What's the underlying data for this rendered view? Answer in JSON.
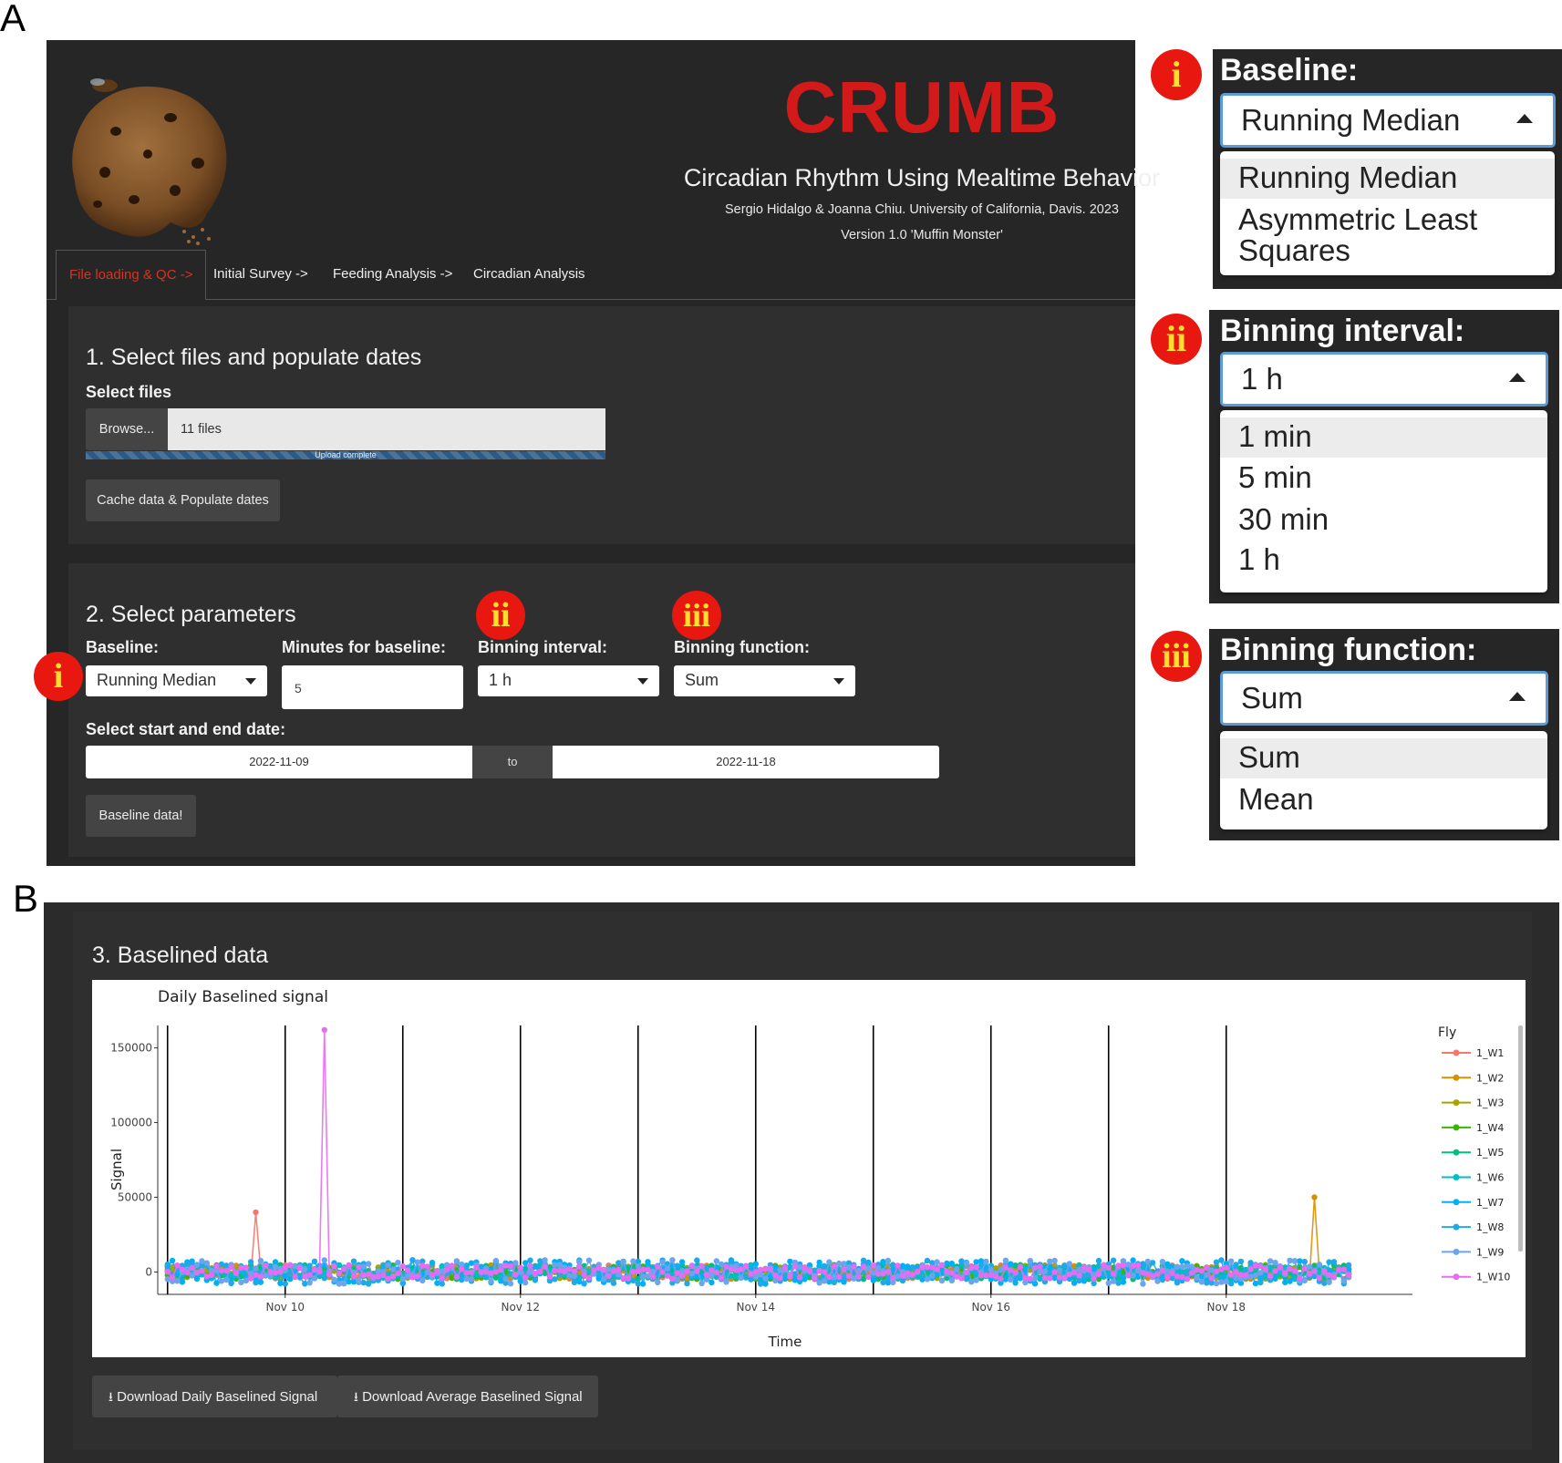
{
  "panel_labels": {
    "a": "A",
    "b": "B"
  },
  "app": {
    "title": "CRUMB",
    "subtitle": "Circadian Rhythm Using Mealtime Behavior",
    "credit": "Sergio Hidalgo & Joanna Chiu. University of California, Davis. 2023",
    "version": "Version 1.0 'Muffin Monster'"
  },
  "tabs": [
    {
      "label": "File loading & QC ->",
      "active": true
    },
    {
      "label": "Initial Survey ->",
      "active": false
    },
    {
      "label": "Feeding Analysis ->",
      "active": false
    },
    {
      "label": "Circadian Analysis",
      "active": false
    }
  ],
  "section1": {
    "heading": "1. Select files and populate dates",
    "select_files_label": "Select files",
    "browse_label": "Browse...",
    "files_value": "11 files",
    "upload_status": "Upload complete",
    "upload_progress": 1.0,
    "cache_button": "Cache data & Populate dates"
  },
  "section2": {
    "heading": "2. Select parameters",
    "baseline_label": "Baseline:",
    "baseline_value": "Running Median",
    "minutes_label": "Minutes for baseline:",
    "minutes_value": "5",
    "binning_interval_label": "Binning interval:",
    "binning_interval_value": "1 h",
    "binning_function_label": "Binning function:",
    "binning_function_value": "Sum",
    "date_label": "Select start and end date:",
    "start_date": "2022-11-09",
    "to_label": "to",
    "end_date": "2022-11-18",
    "baseline_button": "Baseline data!"
  },
  "badges": {
    "i": "i",
    "ii": "ii",
    "iii": "iii"
  },
  "callouts": {
    "baseline": {
      "label": "Baseline:",
      "value": "Running Median",
      "options": [
        "Running Median",
        "Asymmetric Least",
        "Squares"
      ]
    },
    "binning_interval": {
      "label": "Binning interval:",
      "value": "1 h",
      "options": [
        "1 min",
        "5 min",
        "30 min",
        "1 h"
      ]
    },
    "binning_function": {
      "label": "Binning function:",
      "value": "Sum",
      "options": [
        "Sum",
        "Mean"
      ]
    }
  },
  "section3": {
    "heading": "3. Baselined data",
    "download_daily": "Download Daily Baselined Signal",
    "download_average": "Download Average Baselined Signal"
  },
  "chart_data": {
    "type": "line",
    "title": "Daily Baselined signal",
    "xlabel": "Time",
    "ylabel": "Signal",
    "x_range": [
      "2022-11-08T22:00",
      "2022-11-19T14:00"
    ],
    "ylim": [
      -15000,
      165000
    ],
    "yticks": [
      0,
      50000,
      100000,
      150000
    ],
    "ytick_labels": [
      "0",
      "50000",
      "100000",
      "150000"
    ],
    "xticks": [
      "2022-11-10",
      "2022-11-12",
      "2022-11-14",
      "2022-11-16",
      "2022-11-18"
    ],
    "xtick_labels": [
      "Nov 10",
      "Nov 12",
      "Nov 14",
      "Nov 16",
      "Nov 18"
    ],
    "day_boundaries": [
      "2022-11-09",
      "2022-11-10",
      "2022-11-11",
      "2022-11-12",
      "2022-11-13",
      "2022-11-14",
      "2022-11-15",
      "2022-11-16",
      "2022-11-17",
      "2022-11-18"
    ],
    "legend_title": "Fly",
    "legend_position": "right",
    "grid": false,
    "series": [
      {
        "name": "1_W1",
        "color": "#f8766d",
        "spikes": [
          {
            "t": "2022-11-09T18:00",
            "value": 40000
          }
        ]
      },
      {
        "name": "1_W2",
        "color": "#d89000",
        "spikes": [
          {
            "t": "2022-11-18T18:00",
            "value": 50000
          }
        ]
      },
      {
        "name": "1_W3",
        "color": "#a3a500",
        "spikes": []
      },
      {
        "name": "1_W4",
        "color": "#39b600",
        "spikes": []
      },
      {
        "name": "1_W5",
        "color": "#00bf7d",
        "spikes": []
      },
      {
        "name": "1_W6",
        "color": "#00bfc4",
        "spikes": []
      },
      {
        "name": "1_W7",
        "color": "#00b0f6",
        "spikes": []
      },
      {
        "name": "1_W8",
        "color": "#1fa9e8",
        "spikes": []
      },
      {
        "name": "1_W9",
        "color": "#6aa5ee",
        "spikes": []
      },
      {
        "name": "1_W10",
        "color": "#e76bf3",
        "spikes": [
          {
            "t": "2022-11-10T08:00",
            "value": 162000
          }
        ]
      }
    ],
    "baseline_noise_range": [
      -8000,
      8000
    ]
  },
  "colors": {
    "title_red": "#d21a1a",
    "active_tab": "#d9331f",
    "badge_red": "#e8170f",
    "badge_text": "#ffde2e",
    "app_bg": "#262626",
    "focus_border": "#5a9bd8"
  }
}
